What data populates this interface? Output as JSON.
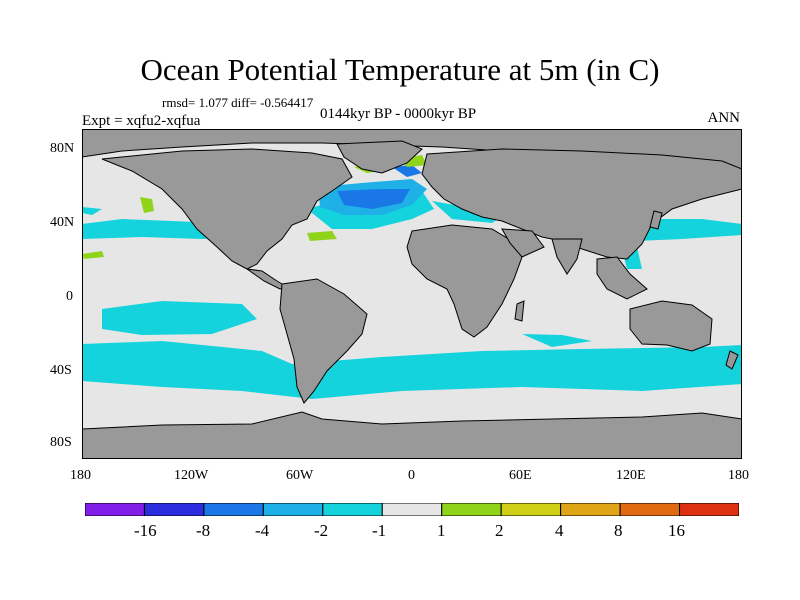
{
  "title": "Ocean Potential Temperature at 5m (in C)",
  "stats": "rmsd= 1.077  diff= -0.564417",
  "experiment": "Expt = xqfu2-xqfua",
  "period": "0144kyr BP - 0000kyr BP",
  "season": "ANN",
  "map": {
    "projection": "cylindrical equidistant",
    "lon_range": [
      -180,
      180
    ],
    "lat_range": [
      -90,
      90
    ],
    "land_color": "#999999",
    "ocean_neutral_color": "#e6e6e6",
    "coast_color": "#000000",
    "lat_labels": [
      "80N",
      "40N",
      "0",
      "40S",
      "80S"
    ],
    "lon_labels": [
      "180",
      "120W",
      "60W",
      "0",
      "60E",
      "120E",
      "180"
    ]
  },
  "colorbar": {
    "labels": [
      "-16",
      "-8",
      "-4",
      "-2",
      "-1",
      "1",
      "2",
      "4",
      "8",
      "16"
    ],
    "colors": [
      "#7f1fe8",
      "#2d2de0",
      "#1a78e6",
      "#1fb0e8",
      "#15d3dc",
      "#e6e6e6",
      "#8fd41a",
      "#cfcf17",
      "#e0a516",
      "#e06a10",
      "#dd3010"
    ]
  }
}
